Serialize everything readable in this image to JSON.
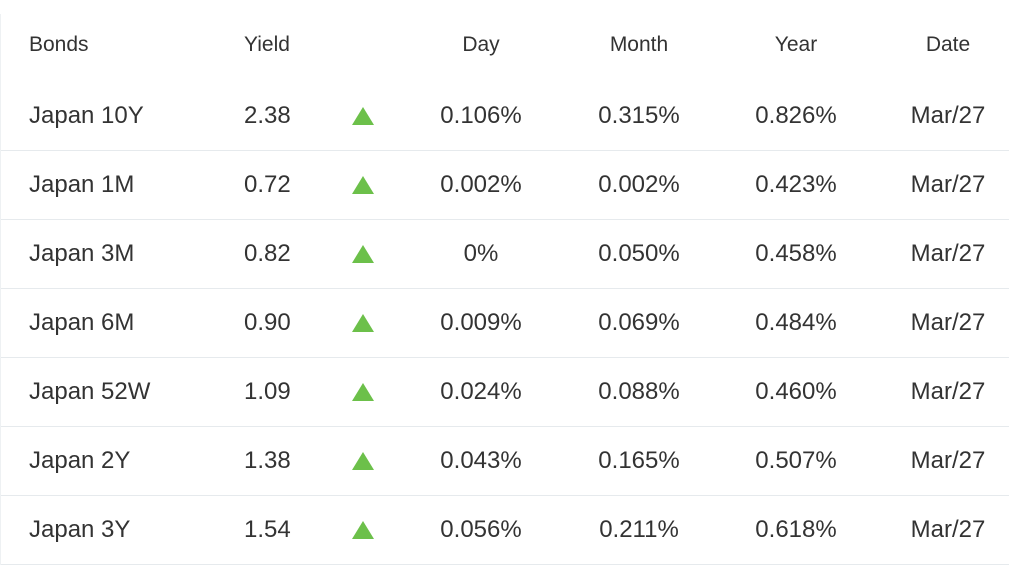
{
  "table": {
    "header": [
      "Bonds",
      "Yield",
      "Day",
      "Month",
      "Year",
      "Date"
    ],
    "rows": [
      [
        "Japan 10Y",
        "2.38",
        "0.106%",
        "0.315%",
        "0.826%",
        "Mar/27"
      ],
      [
        "Japan 1M",
        "0.72",
        "0.002%",
        "0.002%",
        "0.423%",
        "Mar/27"
      ],
      [
        "Japan 3M",
        "0.82",
        "0%",
        "0.050%",
        "0.458%",
        "Mar/27"
      ],
      [
        "Japan 6M",
        "0.90",
        "0.009%",
        "0.069%",
        "0.484%",
        "Mar/27"
      ],
      [
        "Japan 52W",
        "1.09",
        "0.024%",
        "0.088%",
        "0.460%",
        "Mar/27"
      ],
      [
        "Japan 2Y",
        "1.38",
        "0.043%",
        "0.165%",
        "0.507%",
        "Mar/27"
      ],
      [
        "Japan 3Y",
        "1.54",
        "0.056%",
        "0.211%",
        "0.618%",
        "Mar/27"
      ]
    ]
  }
}
